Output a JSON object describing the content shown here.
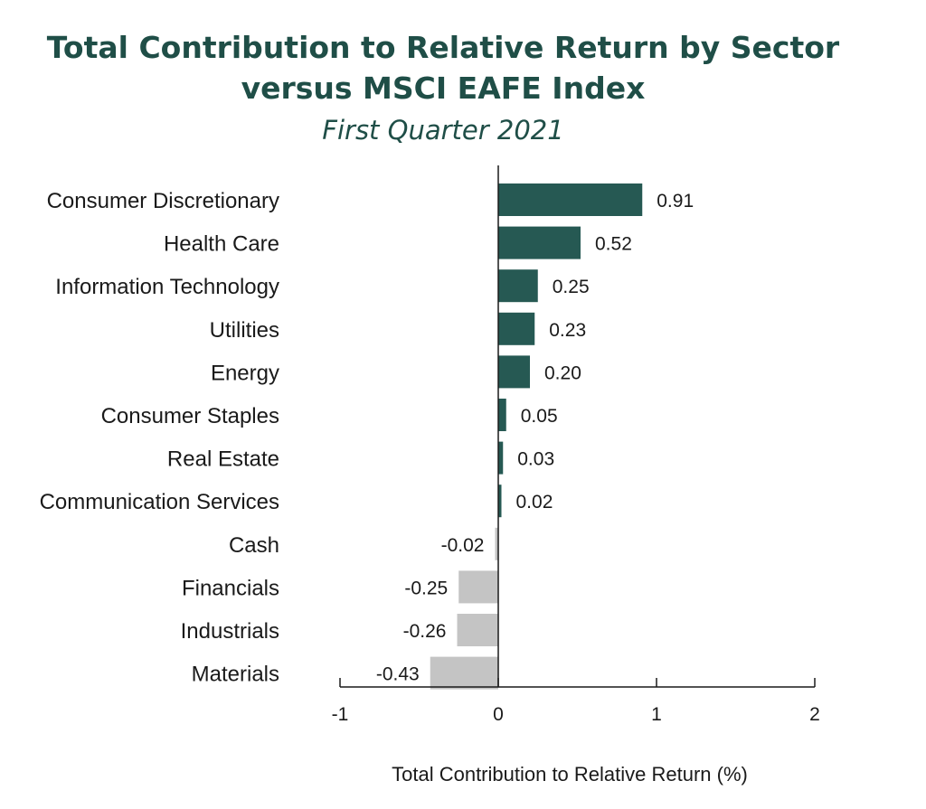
{
  "chart_data": {
    "type": "bar",
    "orientation": "horizontal",
    "title": "Total Contribution to Relative Return by Sector versus MSCI EAFE Index",
    "title_lines": [
      "Total Contribution to Relative Return by Sector",
      "versus MSCI EAFE Index"
    ],
    "subtitle": "First Quarter 2021",
    "xlabel": "Total Contribution to Relative Return (%)",
    "ylabel": "",
    "xlim": [
      -1,
      2
    ],
    "xticks": [
      -1,
      0,
      1,
      2
    ],
    "grid": false,
    "legend": "none",
    "categories": [
      "Consumer Discretionary",
      "Health Care",
      "Information Technology",
      "Utilities",
      "Energy",
      "Consumer Staples",
      "Real Estate",
      "Communication Services",
      "Cash",
      "Financials",
      "Industrials",
      "Materials"
    ],
    "values": [
      0.91,
      0.52,
      0.25,
      0.23,
      0.2,
      0.05,
      0.03,
      0.02,
      -0.02,
      -0.25,
      -0.26,
      -0.43
    ],
    "value_labels": [
      "0.91",
      "0.52",
      "0.25",
      "0.23",
      "0.20",
      "0.05",
      "0.03",
      "0.02",
      "-0.02",
      "-0.25",
      "-0.26",
      "-0.43"
    ],
    "colors": {
      "positive": "#265953",
      "negative": "#c4c4c4",
      "text": "#1f4e47"
    }
  }
}
